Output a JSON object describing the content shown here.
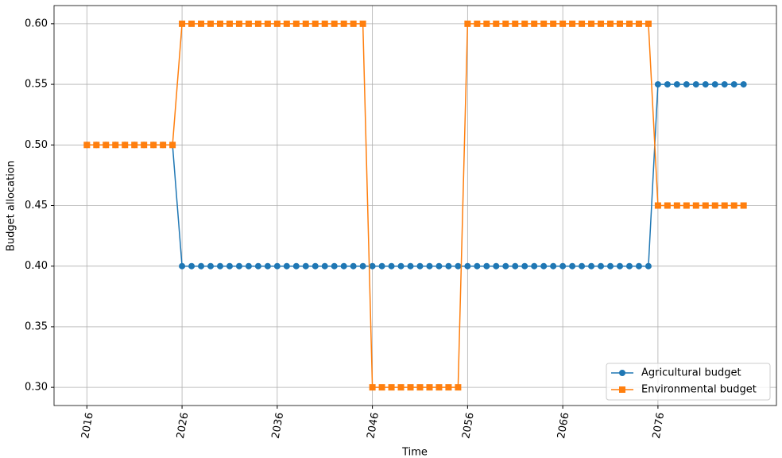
{
  "chart_data": {
    "type": "line",
    "xlabel": "Time",
    "ylabel": "Budget allocation",
    "x": [
      2016,
      2017,
      2018,
      2019,
      2020,
      2021,
      2022,
      2023,
      2024,
      2025,
      2026,
      2027,
      2028,
      2029,
      2030,
      2031,
      2032,
      2033,
      2034,
      2035,
      2036,
      2037,
      2038,
      2039,
      2040,
      2041,
      2042,
      2043,
      2044,
      2045,
      2046,
      2047,
      2048,
      2049,
      2050,
      2051,
      2052,
      2053,
      2054,
      2055,
      2056,
      2057,
      2058,
      2059,
      2060,
      2061,
      2062,
      2063,
      2064,
      2065,
      2066,
      2067,
      2068,
      2069,
      2070,
      2071,
      2072,
      2073,
      2074,
      2075,
      2076,
      2077,
      2078,
      2079,
      2080,
      2081,
      2082,
      2083,
      2084,
      2085
    ],
    "series": [
      {
        "name": "Agricultural budget",
        "color": "#1f77b4",
        "marker": "circle",
        "values": [
          0.5,
          0.5,
          0.5,
          0.5,
          0.5,
          0.5,
          0.5,
          0.5,
          0.5,
          0.5,
          0.4,
          0.4,
          0.4,
          0.4,
          0.4,
          0.4,
          0.4,
          0.4,
          0.4,
          0.4,
          0.4,
          0.4,
          0.4,
          0.4,
          0.4,
          0.4,
          0.4,
          0.4,
          0.4,
          0.4,
          0.4,
          0.4,
          0.4,
          0.4,
          0.4,
          0.4,
          0.4,
          0.4,
          0.4,
          0.4,
          0.4,
          0.4,
          0.4,
          0.4,
          0.4,
          0.4,
          0.4,
          0.4,
          0.4,
          0.4,
          0.4,
          0.4,
          0.4,
          0.4,
          0.4,
          0.4,
          0.4,
          0.4,
          0.4,
          0.4,
          0.55,
          0.55,
          0.55,
          0.55,
          0.55,
          0.55,
          0.55,
          0.55,
          0.55,
          0.55
        ]
      },
      {
        "name": "Environmental budget",
        "color": "#ff7f0e",
        "marker": "square",
        "values": [
          0.5,
          0.5,
          0.5,
          0.5,
          0.5,
          0.5,
          0.5,
          0.5,
          0.5,
          0.5,
          0.6,
          0.6,
          0.6,
          0.6,
          0.6,
          0.6,
          0.6,
          0.6,
          0.6,
          0.6,
          0.6,
          0.6,
          0.6,
          0.6,
          0.6,
          0.6,
          0.6,
          0.6,
          0.6,
          0.6,
          0.3,
          0.3,
          0.3,
          0.3,
          0.3,
          0.3,
          0.3,
          0.3,
          0.3,
          0.3,
          0.6,
          0.6,
          0.6,
          0.6,
          0.6,
          0.6,
          0.6,
          0.6,
          0.6,
          0.6,
          0.6,
          0.6,
          0.6,
          0.6,
          0.6,
          0.6,
          0.6,
          0.6,
          0.6,
          0.6,
          0.45,
          0.45,
          0.45,
          0.45,
          0.45,
          0.45,
          0.45,
          0.45,
          0.45,
          0.45
        ]
      }
    ],
    "xlim": [
      2012.55,
      2088.45
    ],
    "ylim": [
      0.285,
      0.615
    ],
    "xticks": [
      2016,
      2026,
      2036,
      2046,
      2056,
      2066,
      2076
    ],
    "yticks": [
      {
        "value": 0.3,
        "label": "0.30"
      },
      {
        "value": 0.35,
        "label": "0.35"
      },
      {
        "value": 0.4,
        "label": "0.40"
      },
      {
        "value": 0.45,
        "label": "0.45"
      },
      {
        "value": 0.5,
        "label": "0.50"
      },
      {
        "value": 0.55,
        "label": "0.55"
      },
      {
        "value": 0.6,
        "label": "0.60"
      }
    ],
    "grid": true,
    "legend": "lower right"
  }
}
